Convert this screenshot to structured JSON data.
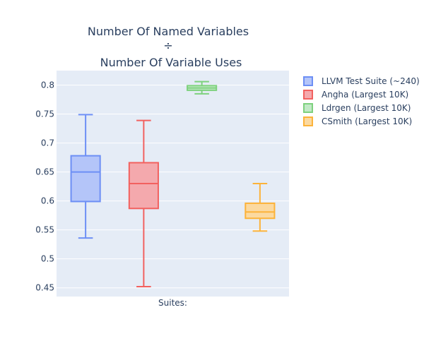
{
  "chart_data": {
    "type": "box",
    "title_lines": [
      "Number Of Named Variables",
      "÷",
      "Number Of Variable Uses"
    ],
    "xlabel": "Suites:",
    "ylim": [
      0.435,
      0.825
    ],
    "yticks": [
      0.45,
      0.5,
      0.55,
      0.6,
      0.65,
      0.7,
      0.75,
      0.8
    ],
    "ytick_labels": [
      "0.45",
      "0.5",
      "0.55",
      "0.6",
      "0.65",
      "0.7",
      "0.75",
      "0.8"
    ],
    "grid": true,
    "legend_position": "top-right",
    "series": [
      {
        "name": "LLVM Test Suite (~240)",
        "color": "#6d8ff5",
        "fill": "#b4c5f9",
        "min": 0.536,
        "q1": 0.599,
        "median": 0.65,
        "q3": 0.678,
        "max": 0.749
      },
      {
        "name": "Angha (Largest 10K)",
        "color": "#f2615f",
        "fill": "#f4a9ad",
        "min": 0.452,
        "q1": 0.587,
        "median": 0.63,
        "q3": 0.666,
        "max": 0.739
      },
      {
        "name": "Ldrgen (Largest 10K)",
        "color": "#7ed17e",
        "fill": "#c2e9c7",
        "min": 0.785,
        "q1": 0.791,
        "median": 0.795,
        "q3": 0.799,
        "max": 0.806
      },
      {
        "name": "CSmith (Largest 10K)",
        "color": "#fcb33a",
        "fill": "#fbd9a0",
        "min": 0.548,
        "q1": 0.57,
        "median": 0.581,
        "q3": 0.596,
        "max": 0.63
      }
    ]
  }
}
